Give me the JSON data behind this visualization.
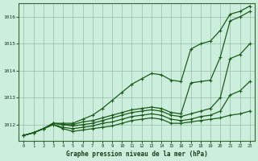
{
  "title": "Graphe pression niveau de la mer (hPa)",
  "bg_color": "#cceedd",
  "grid_color": "#99bbaa",
  "line_color": "#1a5c1a",
  "xlim": [
    -0.5,
    23.5
  ],
  "ylim": [
    1011.4,
    1016.5
  ],
  "yticks": [
    1012,
    1013,
    1014,
    1015,
    1016
  ],
  "xticks": [
    0,
    1,
    2,
    3,
    4,
    5,
    6,
    7,
    8,
    9,
    10,
    11,
    12,
    13,
    14,
    15,
    16,
    17,
    18,
    19,
    20,
    21,
    22,
    23
  ],
  "lines": [
    [
      1011.6,
      1011.7,
      1011.85,
      1012.0,
      1011.85,
      1011.75,
      1011.8,
      1011.85,
      1011.9,
      1011.95,
      1012.05,
      1012.15,
      1012.2,
      1012.25,
      1012.2,
      1012.05,
      1012.05,
      1012.1,
      1012.15,
      1012.2,
      1012.25,
      1012.35,
      1012.4,
      1012.5
    ],
    [
      1011.6,
      1011.7,
      1011.85,
      1012.0,
      1011.9,
      1011.85,
      1011.9,
      1011.95,
      1012.05,
      1012.1,
      1012.2,
      1012.3,
      1012.35,
      1012.4,
      1012.35,
      1012.2,
      1012.15,
      1012.2,
      1012.3,
      1012.35,
      1012.5,
      1013.1,
      1013.25,
      1013.6
    ],
    [
      1011.6,
      1011.7,
      1011.85,
      1012.05,
      1012.0,
      1011.95,
      1012.0,
      1012.05,
      1012.15,
      1012.25,
      1012.35,
      1012.45,
      1012.5,
      1012.55,
      1012.5,
      1012.35,
      1012.3,
      1012.4,
      1012.5,
      1012.6,
      1013.0,
      1014.45,
      1014.6,
      1015.0
    ],
    [
      1011.6,
      1011.7,
      1011.85,
      1012.05,
      1012.0,
      1012.0,
      1012.1,
      1012.15,
      1012.25,
      1012.35,
      1012.45,
      1012.55,
      1012.6,
      1012.65,
      1012.6,
      1012.45,
      1012.4,
      1013.55,
      1013.6,
      1013.65,
      1014.5,
      1015.85,
      1016.0,
      1016.2
    ],
    [
      1011.6,
      1011.7,
      1011.85,
      1012.05,
      1012.05,
      1012.05,
      1012.2,
      1012.35,
      1012.6,
      1012.9,
      1013.2,
      1013.5,
      1013.7,
      1013.9,
      1013.85,
      1013.65,
      1013.6,
      1014.8,
      1015.0,
      1015.1,
      1015.5,
      1016.1,
      1016.2,
      1016.4
    ]
  ]
}
